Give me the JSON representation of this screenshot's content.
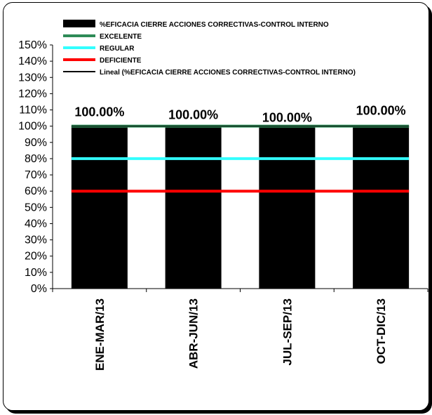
{
  "chart_data": {
    "type": "bar",
    "categories": [
      "ENE-MAR/13",
      "ABR-JUN/13",
      "JUL-SEP/13",
      "OCT-DIC/13"
    ],
    "series": [
      {
        "name": "%EFICACIA CIERRE ACCIONES CORRECTIVAS-CONTROL INTERNO",
        "kind": "bar",
        "values": [
          100,
          100,
          100,
          100
        ],
        "color": "#000000",
        "data_labels": [
          "100.00%",
          "100.00%",
          "100.00%",
          "100.00%"
        ]
      },
      {
        "name": "EXCELENTE",
        "kind": "line",
        "values": [
          100,
          100,
          100,
          100
        ],
        "color": "#2e8b57"
      },
      {
        "name": "REGULAR",
        "kind": "line",
        "values": [
          80,
          80,
          80,
          80
        ],
        "color": "#33ffff"
      },
      {
        "name": "DEFICIENTE",
        "kind": "line",
        "values": [
          60,
          60,
          60,
          60
        ],
        "color": "#ff0000"
      },
      {
        "name": "Lineal (%EFICACIA CIERRE ACCIONES CORRECTIVAS-CONTROL INTERNO)",
        "kind": "trendline",
        "values": [
          100,
          100,
          100,
          100
        ],
        "color": "#000000"
      }
    ],
    "yticks": [
      "0%",
      "10%",
      "20%",
      "30%",
      "40%",
      "50%",
      "60%",
      "70%",
      "80%",
      "90%",
      "100%",
      "110%",
      "120%",
      "130%",
      "140%",
      "150%"
    ],
    "ylim": [
      0,
      150
    ],
    "grid": false,
    "legend_position": "top"
  }
}
